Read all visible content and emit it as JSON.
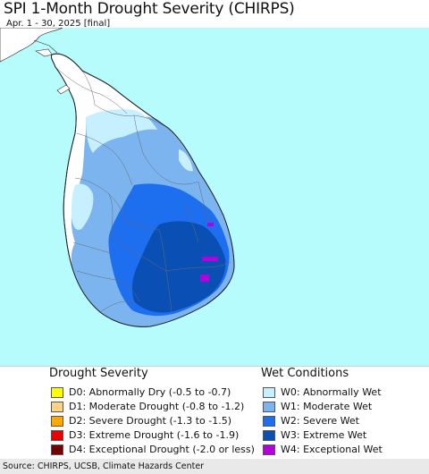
{
  "header": {
    "title": "SPI 1-Month Drought Severity (CHIRPS)",
    "subtitle": "Apr. 1 - 30, 2025 [final]"
  },
  "colors": {
    "sea": "#b6fcfc",
    "land_dry": "#ffffff",
    "W0": "#c6f0ff",
    "W1": "#7cb4f0",
    "W2": "#1e6ef0",
    "W3": "#0a50b4",
    "W4": "#b400dc"
  },
  "legend": {
    "drought": {
      "heading": "Drought Severity",
      "items": [
        {
          "code": "D0",
          "label": "D0: Abnormally Dry (-0.5 to -0.7)",
          "color": "#ffff00"
        },
        {
          "code": "D1",
          "label": "D1: Moderate Drought (-0.8 to -1.2)",
          "color": "#ffd28c"
        },
        {
          "code": "D2",
          "label": "D2: Severe Drought (-1.3 to -1.5)",
          "color": "#ffaa00"
        },
        {
          "code": "D3",
          "label": "D3: Extreme Drought (-1.6 to -1.9)",
          "color": "#e60000"
        },
        {
          "code": "D4",
          "label": "D4: Exceptional Drought (-2.0 or less)",
          "color": "#730000"
        }
      ]
    },
    "wet": {
      "heading": "Wet Conditions",
      "items": [
        {
          "code": "W0",
          "label": "W0: Abnormally Wet",
          "color": "#c6f0ff"
        },
        {
          "code": "W1",
          "label": "W1: Moderate Wet",
          "color": "#7cb4f0"
        },
        {
          "code": "W2",
          "label": "W2: Severe Wet",
          "color": "#1e6ef0"
        },
        {
          "code": "W3",
          "label": "W3: Extreme Wet",
          "color": "#0a50b4"
        },
        {
          "code": "W4",
          "label": "W4: Exceptional Wet",
          "color": "#b400dc"
        }
      ]
    }
  },
  "footer": {
    "source": "Source: CHIRPS, UCSB, Climate Hazards Center"
  }
}
